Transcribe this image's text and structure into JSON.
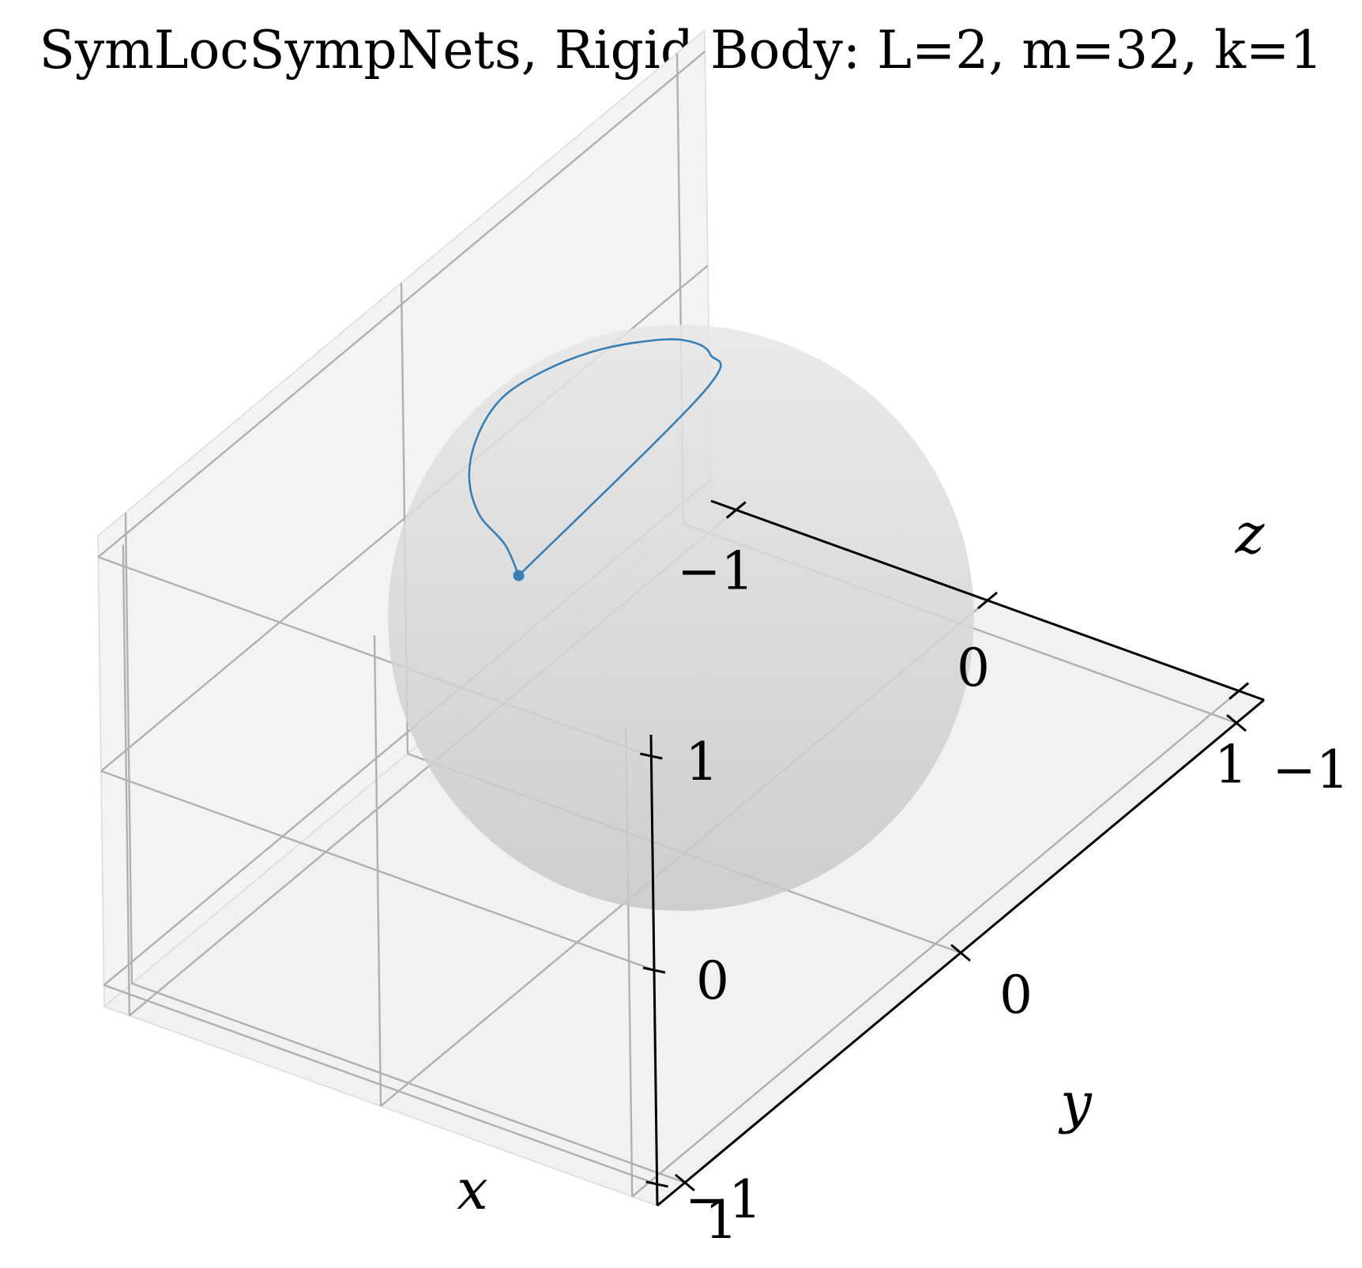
{
  "chart_data": {
    "type": "line3d",
    "title": "SymLocSympNets, Rigid Body: L=2, m=32, k=1",
    "xlabel": "x",
    "ylabel": "y",
    "zlabel": "z",
    "xlim": [
      -1.1,
      1.1
    ],
    "ylim": [
      -1.1,
      1.1
    ],
    "zlim": [
      -1.1,
      1.1
    ],
    "xticks": [
      -1,
      0,
      1
    ],
    "yticks": [
      -1,
      0,
      1
    ],
    "zticks": [
      -1,
      0,
      1
    ],
    "xtick_labels": [
      "−1",
      "0",
      "1"
    ],
    "ytick_labels": [
      "−1",
      "0",
      "1"
    ],
    "ztick_labels": [
      "−1",
      "0",
      "1"
    ],
    "grid": true,
    "sphere": {
      "radius": 1,
      "color": "#c8c8c8"
    },
    "series": [
      {
        "color": "#3a7fb4",
        "x": [
          0.0,
          -0.12,
          -0.3,
          -0.46,
          -0.58,
          -0.66,
          -0.68,
          -0.64,
          -0.55,
          -0.42,
          -0.27,
          -0.12,
          0.0
        ],
        "y": [
          0.58,
          0.52,
          0.45,
          0.34,
          0.2,
          0.04,
          -0.12,
          -0.26,
          -0.36,
          -0.4,
          -0.36,
          -0.2,
          0.58
        ],
        "z": [
          0.82,
          0.85,
          0.84,
          0.83,
          0.82,
          0.79,
          0.73,
          0.69,
          0.67,
          0.69,
          0.73,
          0.79,
          0.82
        ]
      }
    ],
    "start_point": {
      "x": 0.0,
      "y": 0.58,
      "z": 0.82
    }
  }
}
